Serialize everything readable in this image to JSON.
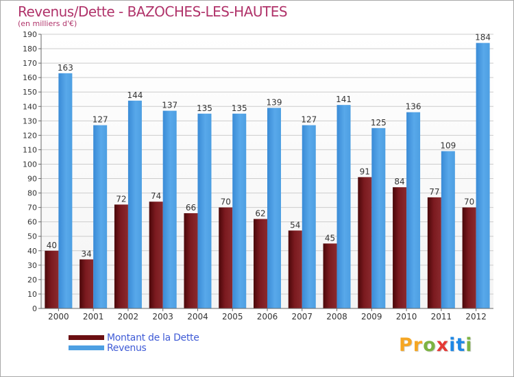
{
  "title": "Revenus/Dette - BAZOCHES-LES-HAUTES",
  "subtitle": "(en milliers d'€)",
  "colors": {
    "dette": "#7b1a1f",
    "revenus": "#4d9fe2",
    "title": "#b0336a",
    "legend_text": "#3f5bd6",
    "grid": "#cccccc"
  },
  "legend": [
    {
      "label": "Montant de la Dette",
      "color": "#6b0f12"
    },
    {
      "label": "Revenus",
      "color": "#4d9fe2"
    }
  ],
  "logo": {
    "letters": [
      "P",
      "r",
      "o",
      "x",
      "i",
      "t",
      "i"
    ],
    "colors": [
      "#f5a623",
      "#f5a623",
      "#7cb342",
      "#e53935",
      "#1e88e5",
      "#1e88e5",
      "#7cb342"
    ]
  },
  "chart_data": {
    "type": "bar",
    "title": "Revenus/Dette - BAZOCHES-LES-HAUTES",
    "ylabel": "(en milliers d'€)",
    "xlabel": "",
    "categories": [
      "2000",
      "2001",
      "2002",
      "2003",
      "2004",
      "2005",
      "2006",
      "2007",
      "2008",
      "2009",
      "2010",
      "2011",
      "2012"
    ],
    "series": [
      {
        "name": "Montant de la Dette",
        "values": [
          40,
          34,
          72,
          74,
          66,
          70,
          62,
          54,
          45,
          91,
          84,
          77,
          70
        ]
      },
      {
        "name": "Revenus",
        "values": [
          163,
          127,
          144,
          137,
          135,
          135,
          139,
          127,
          141,
          125,
          136,
          109,
          184
        ]
      }
    ],
    "ylim": [
      0,
      190
    ],
    "ytick_step": 10,
    "grid": true,
    "legend_position": "bottom-left"
  }
}
